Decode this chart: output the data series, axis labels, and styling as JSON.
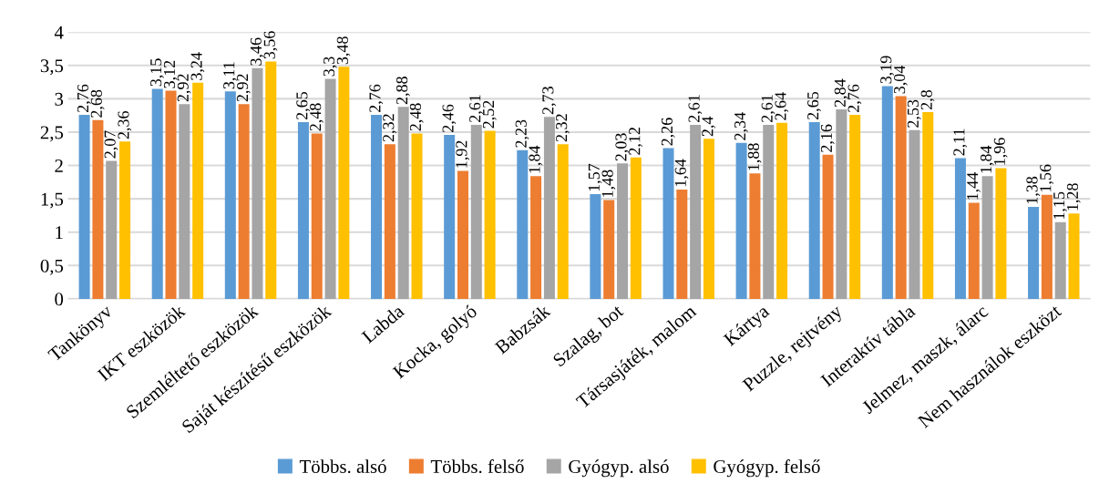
{
  "chart_data": {
    "type": "bar",
    "categories": [
      "Tankönyv",
      "IKT eszközök",
      "Szemléltető eszközök",
      "Saját készítésű eszközök",
      "Labda",
      "Kocka, golyó",
      "Babzsák",
      "Szalag, bot",
      "Társasjáték, malom",
      "Kártya",
      "Puzzle, rejtvény",
      "Interaktív tábla",
      "Jelmez, maszk, álarc",
      "Nem használok eszközt"
    ],
    "series": [
      {
        "name": "Többs. alsó",
        "color": "#5b9bd5",
        "values": [
          2.76,
          3.15,
          3.11,
          2.65,
          2.76,
          2.46,
          2.23,
          1.57,
          2.26,
          2.34,
          2.65,
          3.19,
          2.11,
          1.38
        ],
        "value_labels": [
          "2,76",
          "3,15",
          "3,11",
          "2,65",
          "2,76",
          "2,46",
          "2,23",
          "1,57",
          "2,26",
          "2,34",
          "2,65",
          "3,19",
          "2,11",
          "1,38"
        ]
      },
      {
        "name": "Többs. felső",
        "color": "#ed7d31",
        "values": [
          2.68,
          3.12,
          2.92,
          2.48,
          2.32,
          1.92,
          1.84,
          1.48,
          1.64,
          1.88,
          2.16,
          3.04,
          1.44,
          1.56
        ],
        "value_labels": [
          "2,68",
          "3,12",
          "2,92",
          "2,48",
          "2,32",
          "1,92",
          "1,84",
          "1,48",
          "1,64",
          "1,88",
          "2,16",
          "3,04",
          "1,44",
          "1,56"
        ]
      },
      {
        "name": "Gyógyp. alsó",
        "color": "#a5a5a5",
        "values": [
          2.07,
          2.92,
          3.46,
          3.3,
          2.88,
          2.61,
          2.73,
          2.03,
          2.61,
          2.61,
          2.84,
          2.53,
          1.84,
          1.15
        ],
        "value_labels": [
          "2,07",
          "2,92",
          "3,46",
          "3,3",
          "2,88",
          "2,61",
          "2,73",
          "2,03",
          "2,61",
          "2,61",
          "2,84",
          "2,53",
          "1,84",
          "1,15"
        ]
      },
      {
        "name": "Gyógyp. felső",
        "color": "#ffc000",
        "values": [
          2.36,
          3.24,
          3.56,
          3.48,
          2.48,
          2.52,
          2.32,
          2.12,
          2.4,
          2.64,
          2.76,
          2.8,
          1.96,
          1.28
        ],
        "value_labels": [
          "2,36",
          "3,24",
          "3,56",
          "3,48",
          "2,48",
          "2,52",
          "2,32",
          "2,12",
          "2,4",
          "2,64",
          "2,76",
          "2,8",
          "1,96",
          "1,28"
        ]
      }
    ],
    "ylim": [
      0,
      4
    ],
    "yticks": [
      0,
      {
        "value": 0.5,
        "label": "0,5"
      },
      1,
      {
        "value": 1.5,
        "label": "1,5"
      },
      2,
      {
        "value": 2.5,
        "label": "2,5"
      },
      3,
      {
        "value": 3.5,
        "label": "3,5"
      },
      4
    ],
    "grid": "y",
    "legend": "bottom"
  }
}
